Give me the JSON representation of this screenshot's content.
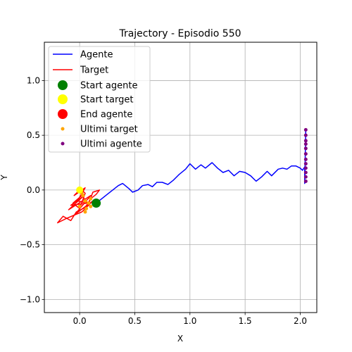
{
  "chart_data": {
    "type": "line",
    "title": "Trajectory - Episodio 550",
    "xlabel": "X",
    "ylabel": "Y",
    "xlim": [
      -0.32,
      2.15
    ],
    "ylim": [
      -1.12,
      1.35
    ],
    "xticks": [
      0.0,
      0.5,
      1.0,
      1.5,
      2.0
    ],
    "yticks": [
      -1.0,
      -0.5,
      0.0,
      0.5,
      1.0
    ],
    "xtick_labels": [
      "0.0",
      "0.5",
      "1.0",
      "1.5",
      "2.0"
    ],
    "ytick_labels": [
      "−1.0",
      "−0.5",
      "0.0",
      "0.5",
      "1.0"
    ],
    "grid": true,
    "legend_position": "top-left",
    "series": [
      {
        "name": "Agente",
        "kind": "line",
        "color": "#0000ff",
        "points": [
          [
            0.15,
            -0.12
          ],
          [
            0.2,
            -0.08
          ],
          [
            0.25,
            -0.04
          ],
          [
            0.3,
            0.0
          ],
          [
            0.35,
            0.04
          ],
          [
            0.39,
            0.06
          ],
          [
            0.45,
            0.01
          ],
          [
            0.48,
            -0.02
          ],
          [
            0.53,
            0.0
          ],
          [
            0.57,
            0.04
          ],
          [
            0.62,
            0.05
          ],
          [
            0.66,
            0.03
          ],
          [
            0.7,
            0.07
          ],
          [
            0.75,
            0.07
          ],
          [
            0.8,
            0.05
          ],
          [
            0.85,
            0.09
          ],
          [
            0.9,
            0.14
          ],
          [
            0.96,
            0.19
          ],
          [
            1.0,
            0.24
          ],
          [
            1.05,
            0.19
          ],
          [
            1.1,
            0.23
          ],
          [
            1.14,
            0.2
          ],
          [
            1.2,
            0.25
          ],
          [
            1.25,
            0.2
          ],
          [
            1.3,
            0.16
          ],
          [
            1.35,
            0.18
          ],
          [
            1.4,
            0.13
          ],
          [
            1.45,
            0.17
          ],
          [
            1.5,
            0.16
          ],
          [
            1.55,
            0.13
          ],
          [
            1.6,
            0.08
          ],
          [
            1.65,
            0.12
          ],
          [
            1.7,
            0.17
          ],
          [
            1.74,
            0.13
          ],
          [
            1.8,
            0.19
          ],
          [
            1.84,
            0.2
          ],
          [
            1.88,
            0.19
          ],
          [
            1.92,
            0.22
          ],
          [
            1.96,
            0.22
          ],
          [
            2.0,
            0.2
          ],
          [
            2.02,
            0.18
          ],
          [
            2.04,
            0.21
          ],
          [
            2.04,
            0.06
          ],
          [
            2.05,
            0.55
          ]
        ]
      },
      {
        "name": "Target",
        "kind": "line",
        "color": "#ff0000",
        "points": [
          [
            0.0,
            0.0
          ],
          [
            -0.05,
            -0.05
          ],
          [
            0.05,
            0.02
          ],
          [
            -0.02,
            -0.1
          ],
          [
            0.07,
            -0.12
          ],
          [
            -0.08,
            -0.14
          ],
          [
            0.03,
            -0.06
          ],
          [
            -0.1,
            -0.18
          ],
          [
            0.1,
            -0.05
          ],
          [
            -0.04,
            -0.22
          ],
          [
            0.12,
            -0.1
          ],
          [
            0.02,
            -0.2
          ],
          [
            -0.12,
            -0.26
          ],
          [
            -0.2,
            -0.3
          ],
          [
            -0.15,
            -0.24
          ],
          [
            -0.08,
            -0.28
          ],
          [
            -0.03,
            -0.2
          ],
          [
            0.05,
            -0.16
          ],
          [
            0.1,
            -0.08
          ],
          [
            0.15,
            -0.04
          ],
          [
            0.18,
            0.0
          ],
          [
            0.12,
            -0.02
          ],
          [
            0.08,
            -0.13
          ],
          [
            0.02,
            -0.05
          ],
          [
            -0.06,
            -0.12
          ],
          [
            0.0,
            -0.17
          ],
          [
            0.05,
            -0.03
          ],
          [
            0.0,
            0.02
          ]
        ]
      },
      {
        "name": "Start agente",
        "kind": "marker",
        "color": "#008000",
        "points": [
          [
            0.15,
            -0.12
          ]
        ]
      },
      {
        "name": "Start target",
        "kind": "marker",
        "color": "#ffff00",
        "points": [
          [
            0.0,
            0.0
          ]
        ]
      },
      {
        "name": "End agente",
        "kind": "marker",
        "color": "#ff0000",
        "points": []
      },
      {
        "name": "Ultimi target",
        "kind": "scatter",
        "color": "#ffa500",
        "points": [
          [
            0.0,
            0.0
          ],
          [
            0.03,
            -0.05
          ],
          [
            0.05,
            -0.1
          ],
          [
            0.08,
            -0.12
          ],
          [
            0.1,
            -0.15
          ],
          [
            0.05,
            -0.2
          ],
          [
            0.0,
            -0.15
          ],
          [
            0.1,
            -0.08
          ],
          [
            0.02,
            -0.03
          ],
          [
            0.06,
            -0.17
          ]
        ]
      },
      {
        "name": "Ultimi agente",
        "kind": "scatter",
        "color": "#800080",
        "points": [
          [
            2.05,
            0.55
          ],
          [
            2.05,
            0.5
          ],
          [
            2.05,
            0.45
          ],
          [
            2.05,
            0.42
          ],
          [
            2.05,
            0.38
          ],
          [
            2.05,
            0.33
          ],
          [
            2.05,
            0.28
          ],
          [
            2.05,
            0.24
          ],
          [
            2.05,
            0.2
          ],
          [
            2.05,
            0.16
          ],
          [
            2.05,
            0.12
          ],
          [
            2.05,
            0.08
          ]
        ]
      }
    ]
  }
}
